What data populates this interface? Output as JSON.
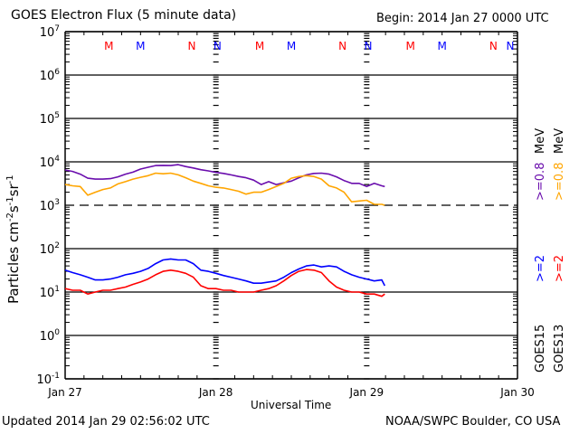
{
  "header": {
    "title": "GOES Electron Flux (5 minute data)",
    "begin": "Begin: 2014 Jan 27 0000 UTC"
  },
  "footer": {
    "updated": "Updated 2014 Jan 29 02:56:02 UTC",
    "credit": "NOAA/SWPC Boulder, CO USA"
  },
  "chart_data": {
    "type": "line",
    "title": "GOES Electron Flux (5 minute data)",
    "xlabel": "Universal Time",
    "ylabel": "Particles cm-2s-1sr-1",
    "yscale": "log",
    "ylim": [
      0.1,
      10000000
    ],
    "xlim_days": [
      0,
      3
    ],
    "x_ticks": [
      "Jan 27",
      "Jan 28",
      "Jan 29",
      "Jan 30"
    ],
    "y_ticks": [
      {
        "base": "10",
        "exp": "7"
      },
      {
        "base": "10",
        "exp": "6"
      },
      {
        "base": "10",
        "exp": "5"
      },
      {
        "base": "10",
        "exp": "4"
      },
      {
        "base": "10",
        "exp": "3"
      },
      {
        "base": "10",
        "exp": "2"
      },
      {
        "base": "10",
        "exp": "1"
      },
      {
        "base": "10",
        "exp": "0"
      },
      {
        "base": "10",
        "exp": "-1"
      }
    ],
    "threshold": {
      "value": 1000,
      "style": "dashed"
    },
    "markers": {
      "labels": [
        {
          "text": "M",
          "color": "#ff0000",
          "day": 0.29
        },
        {
          "text": "M",
          "color": "#0000ff",
          "day": 0.5
        },
        {
          "text": "N",
          "color": "#ff0000",
          "day": 0.84
        },
        {
          "text": "N",
          "color": "#0000ff",
          "day": 1.01
        },
        {
          "text": "M",
          "color": "#ff0000",
          "day": 1.29
        },
        {
          "text": "M",
          "color": "#0000ff",
          "day": 1.5
        },
        {
          "text": "N",
          "color": "#ff0000",
          "day": 1.84
        },
        {
          "text": "N",
          "color": "#0000ff",
          "day": 2.01
        },
        {
          "text": "M",
          "color": "#ff0000",
          "day": 2.29
        },
        {
          "text": "M",
          "color": "#0000ff",
          "day": 2.5
        },
        {
          "text": "N",
          "color": "#ff0000",
          "day": 2.84
        },
        {
          "text": "N",
          "color": "#0000ff",
          "day": 3.01
        }
      ]
    },
    "legend": {
      "placement": "right",
      "columns": [
        {
          "satellite": "GOES15",
          "entries": [
            {
              "text": ">=2",
              "color": "#0000ff"
            },
            {
              "text": ">=0.8",
              "color": "#6a0dad"
            },
            {
              "text": "MeV",
              "color": "#000000"
            }
          ]
        },
        {
          "satellite": "GOES13",
          "entries": [
            {
              "text": ">=2",
              "color": "#ff0000"
            },
            {
              "text": ">=0.8",
              "color": "#ffa500"
            },
            {
              "text": "MeV",
              "color": "#000000"
            }
          ]
        }
      ]
    },
    "series": [
      {
        "name": "GOES15 >=0.8 MeV",
        "color": "#6a0dad",
        "x_days": [
          0.0,
          0.05,
          0.1,
          0.15,
          0.2,
          0.25,
          0.3,
          0.35,
          0.4,
          0.45,
          0.5,
          0.55,
          0.6,
          0.65,
          0.7,
          0.75,
          0.8,
          0.85,
          0.9,
          0.95,
          1.0,
          1.05,
          1.1,
          1.15,
          1.2,
          1.25,
          1.3,
          1.35,
          1.4,
          1.45,
          1.5,
          1.55,
          1.6,
          1.65,
          1.7,
          1.75,
          1.8,
          1.85,
          1.9,
          1.95,
          2.0,
          2.05,
          2.1,
          2.12
        ],
        "values": [
          6500,
          6000,
          5200,
          4200,
          4000,
          4000,
          4100,
          4500,
          5200,
          5800,
          6800,
          7500,
          8200,
          8300,
          8200,
          8600,
          7800,
          7200,
          6600,
          6200,
          5700,
          5400,
          5000,
          4600,
          4300,
          3800,
          3000,
          3500,
          3000,
          3300,
          3600,
          4300,
          5000,
          5400,
          5500,
          5200,
          4500,
          3700,
          3200,
          3200,
          2700,
          3200,
          2800,
          2700
        ]
      },
      {
        "name": "GOES13 >=0.8 MeV",
        "color": "#ffa500",
        "x_days": [
          0.0,
          0.05,
          0.1,
          0.15,
          0.2,
          0.25,
          0.3,
          0.35,
          0.4,
          0.45,
          0.5,
          0.55,
          0.6,
          0.65,
          0.7,
          0.75,
          0.8,
          0.85,
          0.9,
          0.95,
          1.0,
          1.05,
          1.1,
          1.15,
          1.2,
          1.25,
          1.3,
          1.35,
          1.4,
          1.45,
          1.5,
          1.55,
          1.6,
          1.65,
          1.7,
          1.75,
          1.8,
          1.85,
          1.9,
          1.95,
          2.0,
          2.05,
          2.1,
          2.12
        ],
        "values": [
          3000,
          2800,
          2700,
          1700,
          2000,
          2300,
          2500,
          3100,
          3500,
          4000,
          4400,
          4800,
          5500,
          5300,
          5500,
          5000,
          4300,
          3600,
          3200,
          2800,
          2600,
          2500,
          2300,
          2100,
          1800,
          2000,
          2000,
          2300,
          2700,
          3200,
          4200,
          4600,
          4800,
          4600,
          4000,
          2800,
          2500,
          2000,
          1200,
          1250,
          1300,
          1050,
          1050,
          1000
        ]
      },
      {
        "name": "GOES15 >=2 MeV",
        "color": "#0000ff",
        "x_days": [
          0.0,
          0.05,
          0.1,
          0.15,
          0.2,
          0.25,
          0.3,
          0.35,
          0.4,
          0.45,
          0.5,
          0.55,
          0.6,
          0.65,
          0.7,
          0.75,
          0.8,
          0.85,
          0.9,
          0.95,
          1.0,
          1.05,
          1.1,
          1.15,
          1.2,
          1.25,
          1.3,
          1.35,
          1.4,
          1.45,
          1.5,
          1.55,
          1.6,
          1.65,
          1.7,
          1.75,
          1.8,
          1.85,
          1.9,
          1.95,
          2.0,
          2.05,
          2.1,
          2.12
        ],
        "values": [
          32,
          28,
          25,
          22,
          19,
          19,
          20,
          22,
          25,
          27,
          30,
          35,
          45,
          55,
          58,
          55,
          55,
          45,
          32,
          30,
          27,
          24,
          22,
          20,
          18,
          16,
          16,
          17,
          18,
          22,
          28,
          34,
          40,
          42,
          38,
          40,
          38,
          30,
          25,
          22,
          20,
          18,
          19,
          14
        ]
      },
      {
        "name": "GOES13 >=2 MeV",
        "color": "#ff0000",
        "x_days": [
          0.0,
          0.05,
          0.1,
          0.15,
          0.2,
          0.25,
          0.3,
          0.35,
          0.4,
          0.45,
          0.5,
          0.55,
          0.6,
          0.65,
          0.7,
          0.75,
          0.8,
          0.85,
          0.9,
          0.95,
          1.0,
          1.05,
          1.1,
          1.15,
          1.2,
          1.25,
          1.3,
          1.35,
          1.4,
          1.45,
          1.5,
          1.55,
          1.6,
          1.65,
          1.7,
          1.75,
          1.8,
          1.85,
          1.9,
          1.95,
          2.0,
          2.05,
          2.1,
          2.12
        ],
        "values": [
          12,
          11,
          11,
          9,
          10,
          11,
          11,
          12,
          13,
          15,
          17,
          20,
          25,
          30,
          32,
          30,
          27,
          22,
          14,
          12,
          12,
          11,
          11,
          10,
          10,
          10,
          11,
          12,
          14,
          18,
          24,
          30,
          33,
          32,
          28,
          18,
          13,
          11,
          10,
          10,
          9,
          9,
          8,
          9
        ]
      }
    ]
  }
}
